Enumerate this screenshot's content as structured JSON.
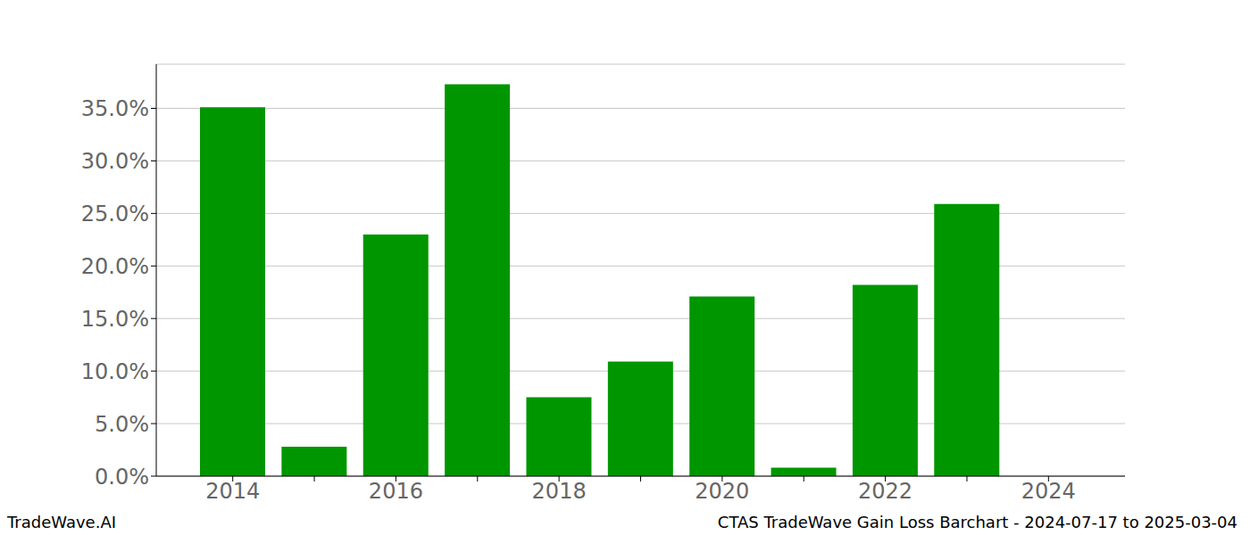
{
  "chart_data": {
    "type": "bar",
    "categories": [
      "2014",
      null,
      "2016",
      null,
      "2018",
      null,
      "2020",
      null,
      "2022",
      null,
      "2024"
    ],
    "values": [
      35.1,
      2.8,
      23.0,
      37.3,
      7.5,
      10.9,
      17.1,
      0.8,
      18.2,
      25.9,
      0
    ],
    "color": "#009600",
    "ylim": [
      0,
      39.2
    ],
    "yticks": [
      {
        "value": 0,
        "label": "0.0%"
      },
      {
        "value": 5,
        "label": "5.0%"
      },
      {
        "value": 10,
        "label": "10.0%"
      },
      {
        "value": 15,
        "label": "15.0%"
      },
      {
        "value": 20,
        "label": "20.0%"
      },
      {
        "value": 25,
        "label": "25.0%"
      },
      {
        "value": 30,
        "label": "30.0%"
      },
      {
        "value": 35,
        "label": "35.0%"
      }
    ],
    "grid": true,
    "annotations": [
      "TradeWave.AI",
      "CTAS TradeWave Gain Loss Barchart - 2024-07-17 to 2025-03-04"
    ]
  }
}
